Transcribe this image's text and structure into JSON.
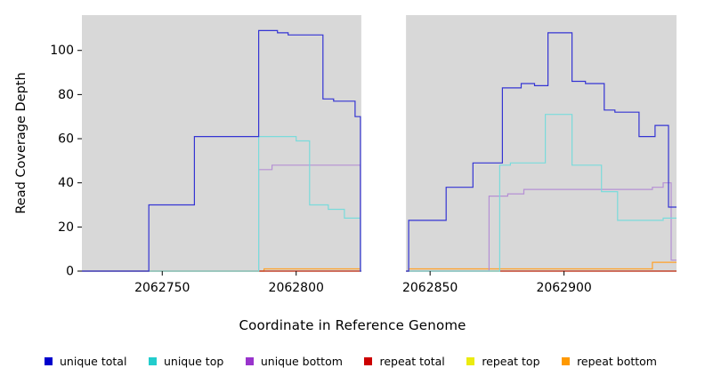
{
  "figure": {
    "background": "#ffffff"
  },
  "chart_data": {
    "type": "line",
    "step": true,
    "title": "",
    "xlabel": "Coordinate in Reference Genome",
    "ylabel": "Read Coverage Depth",
    "xlim": [
      2062720,
      2062942
    ],
    "ylim": [
      0,
      116
    ],
    "xticks": [
      2062750,
      2062800,
      2062850,
      2062900
    ],
    "yticks": [
      0,
      20,
      40,
      60,
      80,
      100
    ],
    "grid": false,
    "legend_position": "bottom",
    "panel_background": "#d8d8d8",
    "no_data_gap": {
      "x_start": 2062824,
      "x_end": 2062841,
      "color": "#ffffff"
    },
    "series": [
      {
        "name": "unique total",
        "line_color": "#3434d3",
        "swatch_color": "#0000cc",
        "points": [
          [
            2062720,
            0
          ],
          [
            2062745,
            30
          ],
          [
            2062762,
            61
          ],
          [
            2062786,
            109
          ],
          [
            2062793,
            108
          ],
          [
            2062797,
            107
          ],
          [
            2062810,
            78
          ],
          [
            2062814,
            77
          ],
          [
            2062822,
            70
          ],
          [
            2062824,
            0
          ],
          [
            2062842,
            23
          ],
          [
            2062856,
            38
          ],
          [
            2062866,
            49
          ],
          [
            2062877,
            83
          ],
          [
            2062884,
            85
          ],
          [
            2062889,
            84
          ],
          [
            2062894,
            108
          ],
          [
            2062903,
            86
          ],
          [
            2062908,
            85
          ],
          [
            2062915,
            73
          ],
          [
            2062919,
            72
          ],
          [
            2062928,
            61
          ],
          [
            2062934,
            66
          ],
          [
            2062939,
            29
          ]
        ]
      },
      {
        "name": "unique top",
        "line_color": "#7adbdb",
        "swatch_color": "#22cccc",
        "points": [
          [
            2062720,
            0
          ],
          [
            2062786,
            61
          ],
          [
            2062800,
            59
          ],
          [
            2062805,
            30
          ],
          [
            2062812,
            28
          ],
          [
            2062818,
            24
          ],
          [
            2062824,
            0
          ],
          [
            2062876,
            48
          ],
          [
            2062880,
            49
          ],
          [
            2062893,
            71
          ],
          [
            2062903,
            48
          ],
          [
            2062914,
            36
          ],
          [
            2062920,
            23
          ],
          [
            2062937,
            24
          ]
        ]
      },
      {
        "name": "unique bottom",
        "line_color": "#b58fd4",
        "swatch_color": "#9933cc",
        "points": [
          [
            2062720,
            0
          ],
          [
            2062786,
            46
          ],
          [
            2062791,
            48
          ],
          [
            2062824,
            0
          ],
          [
            2062872,
            34
          ],
          [
            2062879,
            35
          ],
          [
            2062885,
            37
          ],
          [
            2062933,
            38
          ],
          [
            2062937,
            40
          ],
          [
            2062940,
            5
          ]
        ]
      },
      {
        "name": "repeat total",
        "line_color": "#bb2222",
        "swatch_color": "#cc0000",
        "points": [
          [
            2062720,
            0
          ]
        ]
      },
      {
        "name": "repeat top",
        "line_color": "#eded33",
        "swatch_color": "#ebeb10",
        "points": [
          [
            2062720,
            0
          ]
        ]
      },
      {
        "name": "repeat bottom",
        "line_color": "#ffa127",
        "swatch_color": "#ff9900",
        "points": [
          [
            2062720,
            0
          ],
          [
            2062788,
            1
          ],
          [
            2062824,
            0
          ],
          [
            2062842,
            1
          ],
          [
            2062933,
            4
          ]
        ]
      }
    ]
  }
}
